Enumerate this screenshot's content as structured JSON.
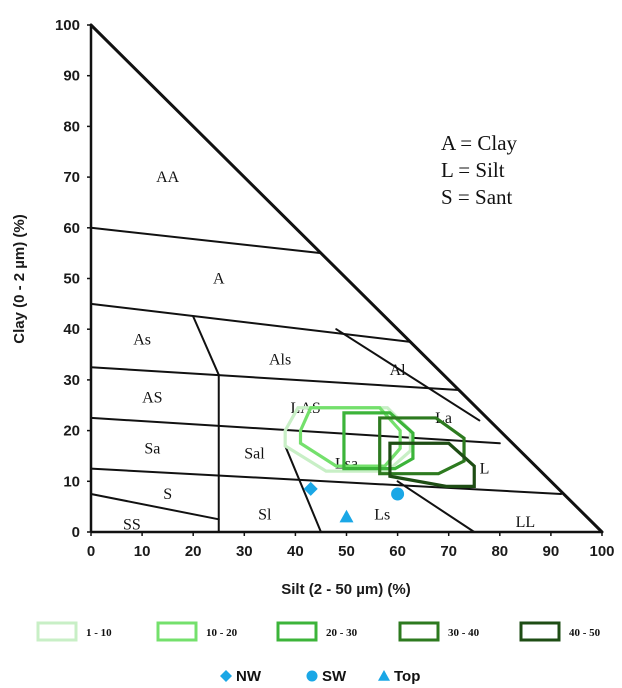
{
  "chart_data": {
    "type": "scatter",
    "subtype": "soil-texture-triangle",
    "title": "",
    "xlabel": "Silt (2 - 50 µm) (%)",
    "ylabel": "Clay (0 - 2 µm) (%)",
    "xlim": [
      0,
      100
    ],
    "ylim": [
      0,
      100
    ],
    "x_ticks": [
      "0",
      "10",
      "20",
      "30",
      "40",
      "50",
      "60",
      "70",
      "80",
      "90",
      "100"
    ],
    "y_ticks": [
      "0",
      "10",
      "20",
      "30",
      "40",
      "50",
      "60",
      "70",
      "80",
      "90",
      "100"
    ],
    "grid": false,
    "key_notes": [
      "A = Clay",
      "L = Silt",
      "S = Sant"
    ],
    "class_boundaries": [
      [
        [
          0,
          100
        ],
        [
          100,
          0
        ]
      ],
      [
        [
          0,
          60
        ],
        [
          45,
          55
        ]
      ],
      [
        [
          0,
          45
        ],
        [
          62.5,
          37.5
        ]
      ],
      [
        [
          0,
          32.5
        ],
        [
          72,
          28
        ]
      ],
      [
        [
          0,
          22.5
        ],
        [
          80,
          17.5
        ]
      ],
      [
        [
          0,
          12.5
        ],
        [
          92,
          7.5
        ]
      ],
      [
        [
          0,
          7.5
        ],
        [
          25,
          2.5
        ]
      ],
      [
        [
          25,
          0
        ],
        [
          25,
          31
        ]
      ],
      [
        [
          20,
          42.5
        ],
        [
          25,
          31
        ]
      ],
      [
        [
          38,
          17
        ],
        [
          45,
          0
        ]
      ],
      [
        [
          48,
          40
        ],
        [
          76,
          22
        ]
      ],
      [
        [
          60,
          10
        ],
        [
          75,
          0
        ]
      ]
    ],
    "regions": [
      {
        "label": "AA",
        "x": 15,
        "y": 70
      },
      {
        "label": "A",
        "x": 25,
        "y": 50
      },
      {
        "label": "As",
        "x": 10,
        "y": 38
      },
      {
        "label": "Als",
        "x": 37,
        "y": 34
      },
      {
        "label": "Al",
        "x": 60,
        "y": 32
      },
      {
        "label": "AS",
        "x": 12,
        "y": 26.5
      },
      {
        "label": "LAS",
        "x": 42,
        "y": 24.5
      },
      {
        "label": "La",
        "x": 69,
        "y": 22.5
      },
      {
        "label": "Sa",
        "x": 12,
        "y": 16.5
      },
      {
        "label": "Sal",
        "x": 32,
        "y": 15.5
      },
      {
        "label": "Lsa",
        "x": 50,
        "y": 13.5
      },
      {
        "label": "L",
        "x": 77,
        "y": 12.5
      },
      {
        "label": "S",
        "x": 15,
        "y": 7.5
      },
      {
        "label": "Sl",
        "x": 34,
        "y": 3.5
      },
      {
        "label": "Ls",
        "x": 57,
        "y": 3.5
      },
      {
        "label": "LL",
        "x": 85,
        "y": 2
      },
      {
        "label": "SS",
        "x": 8,
        "y": 1.5
      }
    ],
    "series": [
      {
        "name": "1 - 10",
        "color": "#c8efc6",
        "values": [
          [
            38,
            20
          ],
          [
            40.5,
            24.5
          ],
          [
            58,
            24.5
          ],
          [
            62.5,
            20
          ],
          [
            62.5,
            16
          ],
          [
            58,
            12
          ],
          [
            46,
            12
          ],
          [
            38,
            17
          ]
        ]
      },
      {
        "name": "10 - 20",
        "color": "#74e06c",
        "values": [
          [
            41,
            20
          ],
          [
            43,
            24.5
          ],
          [
            56.5,
            24.5
          ],
          [
            60.5,
            20
          ],
          [
            60.5,
            16.5
          ],
          [
            57.5,
            13
          ],
          [
            48,
            13
          ],
          [
            41,
            17.5
          ]
        ]
      },
      {
        "name": "20 - 30",
        "color": "#3cb43a",
        "values": [
          [
            49.5,
            23.5
          ],
          [
            58.5,
            23.5
          ],
          [
            63,
            19.5
          ],
          [
            63,
            14.5
          ],
          [
            59.5,
            12.5
          ],
          [
            49.5,
            12.5
          ]
        ]
      },
      {
        "name": "30 - 40",
        "color": "#2d7a1f",
        "values": [
          [
            56.5,
            22.5
          ],
          [
            67.5,
            22.5
          ],
          [
            73,
            18.5
          ],
          [
            73,
            14
          ],
          [
            68,
            11.5
          ],
          [
            56.5,
            11.5
          ]
        ]
      },
      {
        "name": "40 - 50",
        "color": "#1e4d14",
        "values": [
          [
            58.5,
            17.5
          ],
          [
            70,
            17.5
          ],
          [
            75,
            13
          ],
          [
            75,
            9
          ],
          [
            69.5,
            9
          ],
          [
            58.5,
            11
          ]
        ]
      }
    ],
    "samples": [
      {
        "name": "NW",
        "marker": "diamond",
        "color": "#1aa7e6",
        "x": 43,
        "y": 8.5
      },
      {
        "name": "SW",
        "marker": "circle",
        "color": "#1aa7e6",
        "x": 60,
        "y": 7.5
      },
      {
        "name": "Top",
        "marker": "triangle",
        "color": "#1aa7e6",
        "x": 50,
        "y": 3
      }
    ]
  }
}
